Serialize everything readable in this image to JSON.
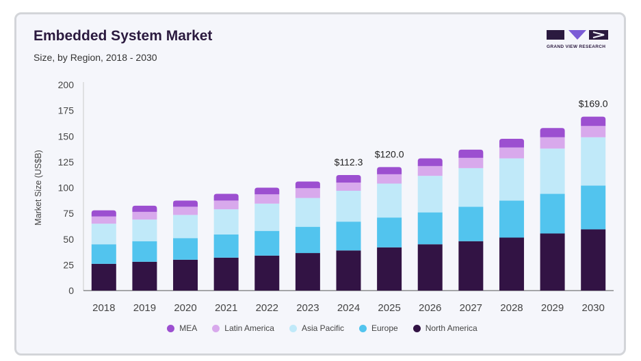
{
  "header": {
    "title": "Embedded System Market",
    "subtitle": "Size, by Region, 2018 - 2030",
    "logo_text": "GRAND VIEW RESEARCH"
  },
  "colors": {
    "MEA": "#9c4fd0",
    "Latin America": "#d8a9ec",
    "Asia Pacific": "#c0e9f9",
    "Europe": "#52c4ee",
    "North America": "#321344",
    "logo_primary": "#2b1a3f",
    "logo_accent": "#7b5cd6"
  },
  "chart_data": {
    "type": "bar",
    "stacked": true,
    "title": "Embedded System Market",
    "subtitle": "Size, by Region, 2018 - 2030",
    "xlabel": "",
    "ylabel": "Market Size (US$B)",
    "ylim": [
      0,
      200
    ],
    "yticks": [
      0,
      25,
      50,
      75,
      100,
      125,
      150,
      175,
      200
    ],
    "categories": [
      "2018",
      "2019",
      "2020",
      "2021",
      "2022",
      "2023",
      "2024",
      "2025",
      "2026",
      "2027",
      "2028",
      "2029",
      "2030"
    ],
    "series": [
      {
        "name": "North America",
        "values": [
          26,
          28,
          30,
          32,
          34,
          36.5,
          39,
          42,
          45,
          48,
          51.5,
          55.5,
          59.5
        ]
      },
      {
        "name": "Europe",
        "values": [
          19,
          20,
          21,
          22.5,
          24,
          25.5,
          28,
          29,
          31,
          33.5,
          36,
          38.5,
          42.5
        ]
      },
      {
        "name": "Asia Pacific",
        "values": [
          20,
          21,
          22.5,
          24.5,
          26.5,
          28,
          30,
          33,
          35.5,
          37.5,
          41,
          44,
          47
        ]
      },
      {
        "name": "Latin America",
        "values": [
          7,
          7.5,
          8,
          8.5,
          9,
          9.5,
          8,
          9,
          9.5,
          10,
          10.5,
          11,
          11
        ]
      },
      {
        "name": "MEA",
        "values": [
          6,
          6,
          6,
          6.5,
          6.5,
          6.5,
          7.3,
          7,
          7.5,
          8,
          8.5,
          9,
          9
        ]
      }
    ],
    "data_labels": [
      {
        "category": "2024",
        "text": "$112.3"
      },
      {
        "category": "2025",
        "text": "$120.0"
      },
      {
        "category": "2030",
        "text": "$169.0"
      }
    ],
    "legend_order": [
      "MEA",
      "Latin America",
      "Asia Pacific",
      "Europe",
      "North America"
    ],
    "legend_position": "bottom",
    "grid": false
  }
}
